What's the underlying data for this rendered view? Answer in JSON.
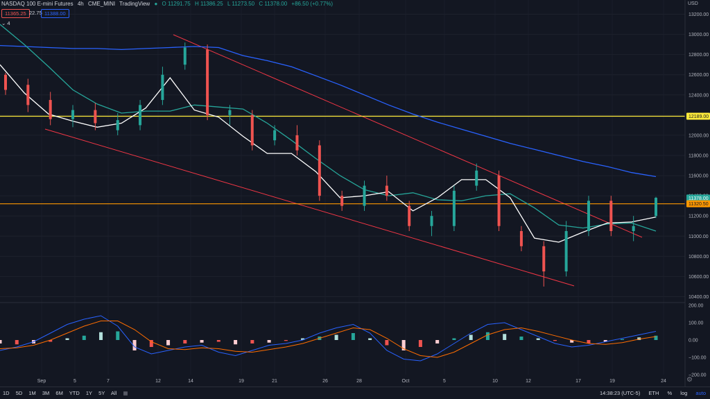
{
  "legend": {
    "title": "NASDAQ 100 E-mini Futures",
    "interval": "4h",
    "exchange": "CME_MINI",
    "source": "TradingView",
    "open": "O 11291.75",
    "high": "H 11386.25",
    "low": "L 11273.50",
    "close": "C 11378.00",
    "change": "+86.50 (+0.77%)",
    "bid": "11365.25",
    "spread": "22.75",
    "ask": "11388.00",
    "indicator_count": "4"
  },
  "axis": {
    "currency": "USD",
    "price_ticks": [
      "13200.00",
      "13000.00",
      "12800.00",
      "12600.00",
      "12400.00",
      "12200.00",
      "12000.00",
      "11800.00",
      "11600.00",
      "11400.00",
      "11200.00",
      "11000.00",
      "10800.00",
      "10600.00",
      "10400.00"
    ],
    "macd_ticks": [
      "200.00",
      "100.00",
      "0.00",
      "−100.00",
      "−200.00"
    ],
    "time_ticks": [
      "Sep",
      "5",
      "7",
      "12",
      "14",
      "19",
      "21",
      "26",
      "28",
      "Oct",
      "5",
      "10",
      "12",
      "17",
      "19",
      "24"
    ],
    "level_12189": "12189.00",
    "last_price": "11378.00",
    "level_11320": "11320.50"
  },
  "toolbar": {
    "timeframes": [
      "1D",
      "5D",
      "1M",
      "3M",
      "6M",
      "YTD",
      "1Y",
      "5Y",
      "All"
    ],
    "clock": "14:38:23 (UTC-5)",
    "session": "ETH",
    "percent": "%",
    "log": "log",
    "auto": "auto"
  },
  "colors": {
    "up": "#26a69a",
    "down": "#ef5350",
    "ma_fast": "#ffffff",
    "ma_mid": "#26a69a",
    "ma_slow": "#2962ff",
    "hline_yellow": "#ffeb3b",
    "hline_orange": "#ff9800",
    "channel": "#f23645"
  },
  "chart_data": {
    "type": "candlestick",
    "ylim": [
      10300,
      13300
    ],
    "hlines": [
      12189,
      11320.5
    ],
    "ma_slow": [
      12890,
      12880,
      12870,
      12860,
      12860,
      12850,
      12860,
      12870,
      12880,
      12870,
      12790,
      12740,
      12680,
      12590,
      12500,
      12400,
      12300,
      12210,
      12130,
      12060,
      11990,
      11920,
      11860,
      11800,
      11740,
      11690,
      11630,
      11590
    ],
    "ma_mid": [
      13100,
      12900,
      12680,
      12450,
      12310,
      12220,
      12240,
      12240,
      12300,
      12280,
      12260,
      12120,
      11950,
      11770,
      11600,
      11460,
      11400,
      11430,
      11360,
      11350,
      11400,
      11420,
      11280,
      11110,
      11080,
      11120,
      11130,
      11050
    ],
    "ma_fast": [
      12700,
      12420,
      12210,
      12140,
      12080,
      12120,
      12270,
      12570,
      12250,
      12180,
      11990,
      11820,
      11820,
      11640,
      11380,
      11400,
      11440,
      11250,
      11380,
      11560,
      11560,
      11380,
      10980,
      10940,
      11040,
      11130,
      11140,
      11190
    ],
    "candles": [
      [
        12600,
        12450,
        12620,
        12400
      ],
      [
        12500,
        12300,
        12560,
        12230
      ],
      [
        12350,
        12160,
        12430,
        12100
      ],
      [
        12160,
        12250,
        12300,
        12080
      ],
      [
        12250,
        12120,
        12320,
        12050
      ],
      [
        12050,
        12150,
        12220,
        12000
      ],
      [
        12100,
        12300,
        12350,
        12050
      ],
      [
        12350,
        12600,
        12680,
        12300
      ],
      [
        12700,
        12870,
        12920,
        12650
      ],
      [
        12850,
        12200,
        12900,
        12150
      ],
      [
        12200,
        12250,
        12300,
        12100
      ],
      [
        12200,
        11900,
        12250,
        11850
      ],
      [
        11950,
        12050,
        12100,
        11900
      ],
      [
        12000,
        11850,
        12100,
        11800
      ],
      [
        11900,
        11400,
        11950,
        11350
      ],
      [
        11400,
        11300,
        11450,
        11250
      ],
      [
        11300,
        11500,
        11550,
        11250
      ],
      [
        11500,
        11400,
        11600,
        11350
      ],
      [
        11300,
        11100,
        11350,
        11050
      ],
      [
        11100,
        11200,
        11250,
        11000
      ],
      [
        11100,
        11450,
        11500,
        11050
      ],
      [
        11500,
        11650,
        11720,
        11450
      ],
      [
        11600,
        11100,
        11650,
        11050
      ],
      [
        11050,
        10900,
        11100,
        10850
      ],
      [
        10900,
        10650,
        10950,
        10500
      ],
      [
        10650,
        11050,
        11150,
        10600
      ],
      [
        11050,
        11350,
        11400,
        11000
      ],
      [
        11350,
        11050,
        11400,
        11000
      ],
      [
        11050,
        11100,
        11200,
        10950
      ],
      [
        11200,
        11380,
        11390,
        11180
      ]
    ],
    "macd_hist": [
      -20,
      -25,
      -20,
      -10,
      10,
      25,
      45,
      50,
      -60,
      -40,
      -30,
      -20,
      -15,
      -10,
      -25,
      -20,
      -15,
      -5,
      10,
      20,
      30,
      40,
      10,
      -30,
      -60,
      -40,
      -20,
      10,
      30,
      45,
      35,
      20,
      10,
      -5,
      -15,
      -20,
      -10,
      5,
      15,
      25
    ],
    "macd_line": [
      -60,
      -40,
      -10,
      40,
      90,
      120,
      140,
      80,
      -40,
      -80,
      -60,
      -40,
      -30,
      -70,
      -90,
      -60,
      -30,
      -20,
      0,
      40,
      70,
      90,
      40,
      -60,
      -110,
      -120,
      -80,
      -20,
      40,
      90,
      100,
      60,
      20,
      -20,
      -40,
      -30,
      -10,
      10,
      30,
      50
    ],
    "signal_line": [
      -50,
      -45,
      -30,
      0,
      40,
      80,
      110,
      110,
      60,
      -10,
      -50,
      -55,
      -45,
      -50,
      -65,
      -70,
      -55,
      -40,
      -20,
      10,
      40,
      70,
      60,
      10,
      -50,
      -90,
      -100,
      -70,
      -20,
      30,
      60,
      70,
      50,
      25,
      0,
      -20,
      -25,
      -15,
      5,
      20
    ]
  }
}
